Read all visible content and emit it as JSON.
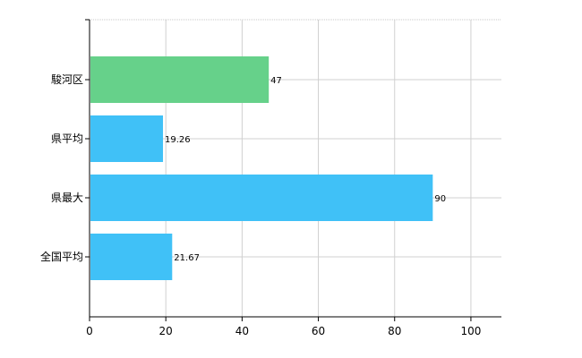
{
  "chart_data": {
    "type": "bar",
    "orientation": "horizontal",
    "categories": [
      "駿河区",
      "県平均",
      "県最大",
      "全国平均"
    ],
    "values": [
      47,
      19.26,
      90,
      21.67
    ],
    "value_labels": [
      "47",
      "19.26",
      "90",
      "21.67"
    ],
    "bar_colors": [
      "#66d18a",
      "#40c1f7",
      "#40c1f7",
      "#40c1f7"
    ],
    "xlim": [
      0,
      108
    ],
    "x_ticks": [
      0,
      20,
      40,
      60,
      80,
      100
    ],
    "x_tick_labels": [
      "0",
      "20",
      "40",
      "60",
      "80",
      "100"
    ],
    "grid": true,
    "legend": "none",
    "title": "",
    "xlabel": "",
    "ylabel": ""
  }
}
